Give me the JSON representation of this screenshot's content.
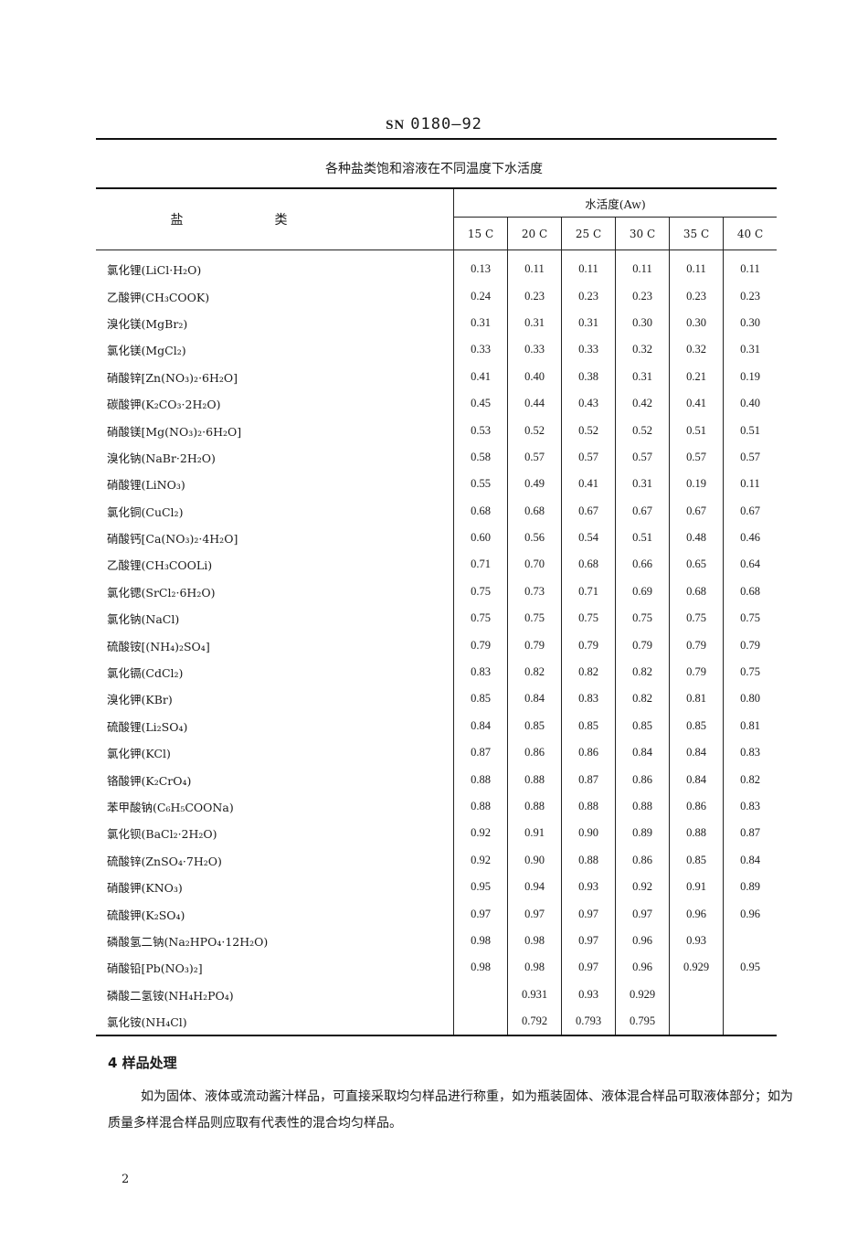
{
  "header": {
    "standard_prefix": "SN",
    "standard_number": "0180—92"
  },
  "table": {
    "caption": "各种盐类饱和溶液在不同温度下水活度",
    "salt_header": "盐类",
    "aw_header": "水活度(Aw)",
    "temps": [
      "15 C",
      "20 C",
      "25 C",
      "30 C",
      "35 C",
      "40 C"
    ],
    "rows": [
      {
        "salt": "氯化锂(LiCl·H₂O)",
        "v": [
          "0.13",
          "0.11",
          "0.11",
          "0.11",
          "0.11",
          "0.11"
        ]
      },
      {
        "salt": "乙酸钾(CH₃COOK)",
        "v": [
          "0.24",
          "0.23",
          "0.23",
          "0.23",
          "0.23",
          "0.23"
        ]
      },
      {
        "salt": "溴化镁(MgBr₂)",
        "v": [
          "0.31",
          "0.31",
          "0.31",
          "0.30",
          "0.30",
          "0.30"
        ]
      },
      {
        "salt": "氯化镁(MgCl₂)",
        "v": [
          "0.33",
          "0.33",
          "0.33",
          "0.32",
          "0.32",
          "0.31"
        ]
      },
      {
        "salt": "硝酸锌[Zn(NO₃)₂·6H₂O]",
        "v": [
          "0.41",
          "0.40",
          "0.38",
          "0.31",
          "0.21",
          "0.19"
        ]
      },
      {
        "salt": "碳酸钾(K₂CO₃·2H₂O)",
        "v": [
          "0.45",
          "0.44",
          "0.43",
          "0.42",
          "0.41",
          "0.40"
        ]
      },
      {
        "salt": "硝酸镁[Mg(NO₃)₂·6H₂O]",
        "v": [
          "0.53",
          "0.52",
          "0.52",
          "0.52",
          "0.51",
          "0.51"
        ]
      },
      {
        "salt": "溴化钠(NaBr·2H₂O)",
        "v": [
          "0.58",
          "0.57",
          "0.57",
          "0.57",
          "0.57",
          "0.57"
        ]
      },
      {
        "salt": "硝酸锂(LiNO₃)",
        "v": [
          "0.55",
          "0.49",
          "0.41",
          "0.31",
          "0.19",
          "0.11"
        ]
      },
      {
        "salt": "氯化铜(CuCl₂)",
        "v": [
          "0.68",
          "0.68",
          "0.67",
          "0.67",
          "0.67",
          "0.67"
        ]
      },
      {
        "salt": "硝酸钙[Ca(NO₃)₂·4H₂O]",
        "v": [
          "0.60",
          "0.56",
          "0.54",
          "0.51",
          "0.48",
          "0.46"
        ]
      },
      {
        "salt": "乙酸锂(CH₃COOLi)",
        "v": [
          "0.71",
          "0.70",
          "0.68",
          "0.66",
          "0.65",
          "0.64"
        ]
      },
      {
        "salt": "氯化锶(SrCl₂·6H₂O)",
        "v": [
          "0.75",
          "0.73",
          "0.71",
          "0.69",
          "0.68",
          "0.68"
        ]
      },
      {
        "salt": "氯化钠(NaCl)",
        "v": [
          "0.75",
          "0.75",
          "0.75",
          "0.75",
          "0.75",
          "0.75"
        ]
      },
      {
        "salt": "硫酸铵[(NH₄)₂SO₄]",
        "v": [
          "0.79",
          "0.79",
          "0.79",
          "0.79",
          "0.79",
          "0.79"
        ]
      },
      {
        "salt": "氯化镉(CdCl₂)",
        "v": [
          "0.83",
          "0.82",
          "0.82",
          "0.82",
          "0.79",
          "0.75"
        ]
      },
      {
        "salt": "溴化钾(KBr)",
        "v": [
          "0.85",
          "0.84",
          "0.83",
          "0.82",
          "0.81",
          "0.80"
        ]
      },
      {
        "salt": "硫酸锂(Li₂SO₄)",
        "v": [
          "0.84",
          "0.85",
          "0.85",
          "0.85",
          "0.85",
          "0.81"
        ]
      },
      {
        "salt": "氯化钾(KCl)",
        "v": [
          "0.87",
          "0.86",
          "0.86",
          "0.84",
          "0.84",
          "0.83"
        ]
      },
      {
        "salt": "铬酸钾(K₂CrO₄)",
        "v": [
          "0.88",
          "0.88",
          "0.87",
          "0.86",
          "0.84",
          "0.82"
        ]
      },
      {
        "salt": "苯甲酸钠(C₆H₅COONa)",
        "v": [
          "0.88",
          "0.88",
          "0.88",
          "0.88",
          "0.86",
          "0.83"
        ]
      },
      {
        "salt": "氯化钡(BaCl₂·2H₂O)",
        "v": [
          "0.92",
          "0.91",
          "0.90",
          "0.89",
          "0.88",
          "0.87"
        ]
      },
      {
        "salt": "硫酸锌(ZnSO₄·7H₂O)",
        "v": [
          "0.92",
          "0.90",
          "0.88",
          "0.86",
          "0.85",
          "0.84"
        ]
      },
      {
        "salt": "硝酸钾(KNO₃)",
        "v": [
          "0.95",
          "0.94",
          "0.93",
          "0.92",
          "0.91",
          "0.89"
        ]
      },
      {
        "salt": "硫酸钾(K₂SO₄)",
        "v": [
          "0.97",
          "0.97",
          "0.97",
          "0.97",
          "0.96",
          "0.96"
        ]
      },
      {
        "salt": "磷酸氢二钠(Na₂HPO₄·12H₂O)",
        "v": [
          "0.98",
          "0.98",
          "0.97",
          "0.96",
          "0.93",
          ""
        ]
      },
      {
        "salt": "硝酸铅[Pb(NO₃)₂]",
        "v": [
          "0.98",
          "0.98",
          "0.97",
          "0.96",
          "0.929",
          "0.95"
        ]
      },
      {
        "salt": "磷酸二氢铵(NH₄H₂PO₄)",
        "v": [
          "",
          "0.931",
          "0.93",
          "0.929",
          "",
          ""
        ]
      },
      {
        "salt": "氯化铵(NH₄Cl)",
        "v": [
          "",
          "0.792",
          "0.793",
          "0.795",
          "",
          ""
        ]
      }
    ]
  },
  "section": {
    "title": "4  样品处理",
    "body": "如为固体、液体或流动酱汁样品，可直接采取均匀样品进行称重，如为瓶装固体、液体混合样品可取液体部分；如为质量多样混合样品则应取有代表性的混合均匀样品。"
  },
  "page_number": "2"
}
